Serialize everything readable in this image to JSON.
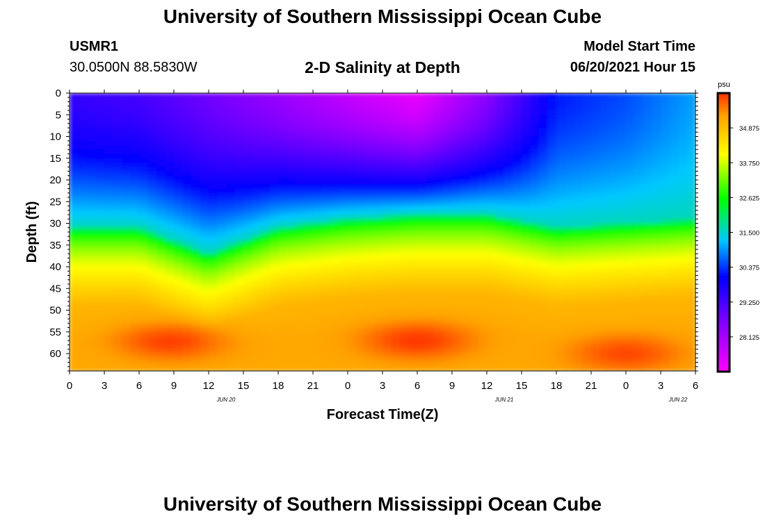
{
  "header": {
    "title": "University of Southern Mississippi Ocean Cube",
    "station_id": "USMR1",
    "station_coords": "30.0500N  88.5830W",
    "plot_title": "2-D Salinity at Depth",
    "model_start_label": "Model Start Time",
    "model_start_value": "06/20/2021 Hour 15"
  },
  "footer": {
    "title": "University of Southern Mississippi Ocean Cube"
  },
  "chart_data": {
    "type": "heatmap",
    "title": "2-D Salinity at Depth",
    "xlabel": "Forecast Time(Z)",
    "ylabel": "Depth (ft)",
    "x_ticks": [
      "0",
      "3",
      "6",
      "9",
      "12",
      "15",
      "18",
      "21",
      "0",
      "3",
      "6",
      "9",
      "12",
      "15",
      "18",
      "21",
      "0",
      "3",
      "6"
    ],
    "x_date_labels": [
      {
        "label": "JUN 20",
        "after_tick_index": 4
      },
      {
        "label": "JUN 21",
        "after_tick_index": 12
      },
      {
        "label": "JUN 22",
        "after_tick_index": 17
      }
    ],
    "y_ticks": [
      "0",
      "5",
      "10",
      "15",
      "20",
      "25",
      "30",
      "35",
      "40",
      "45",
      "50",
      "55",
      "60"
    ],
    "ylim": [
      0,
      64
    ],
    "xlim_hours": [
      0,
      54
    ],
    "colorbar": {
      "unit": "psu",
      "min": 27.0,
      "max": 36.0,
      "ticks": [
        "34.875",
        "33.750",
        "32.625",
        "31.500",
        "30.375",
        "29.250",
        "28.125"
      ],
      "tick_values": [
        34.875,
        33.75,
        32.625,
        31.5,
        30.375,
        29.25,
        28.125
      ]
    },
    "surface_salinity_profile": {
      "x_hours": [
        0,
        6,
        12,
        18,
        24,
        30,
        36,
        42,
        48,
        54
      ],
      "values": [
        29.5,
        29.3,
        28.8,
        28.3,
        27.8,
        27.3,
        28.5,
        30.2,
        30.5,
        31.0
      ]
    },
    "halocline_depth_ft": {
      "x_hours": [
        0,
        6,
        12,
        18,
        24,
        30,
        36,
        42,
        48,
        54
      ],
      "values": [
        31,
        31,
        37,
        31,
        29,
        28,
        28,
        31,
        30,
        29
      ]
    },
    "high_salinity_core_centers": [
      {
        "hour": 9,
        "depth_ft": 57,
        "value": 35.9
      },
      {
        "hour": 30,
        "depth_ft": 57,
        "value": 35.9
      },
      {
        "hour": 48,
        "depth_ft": 60,
        "value": 35.8
      }
    ]
  }
}
